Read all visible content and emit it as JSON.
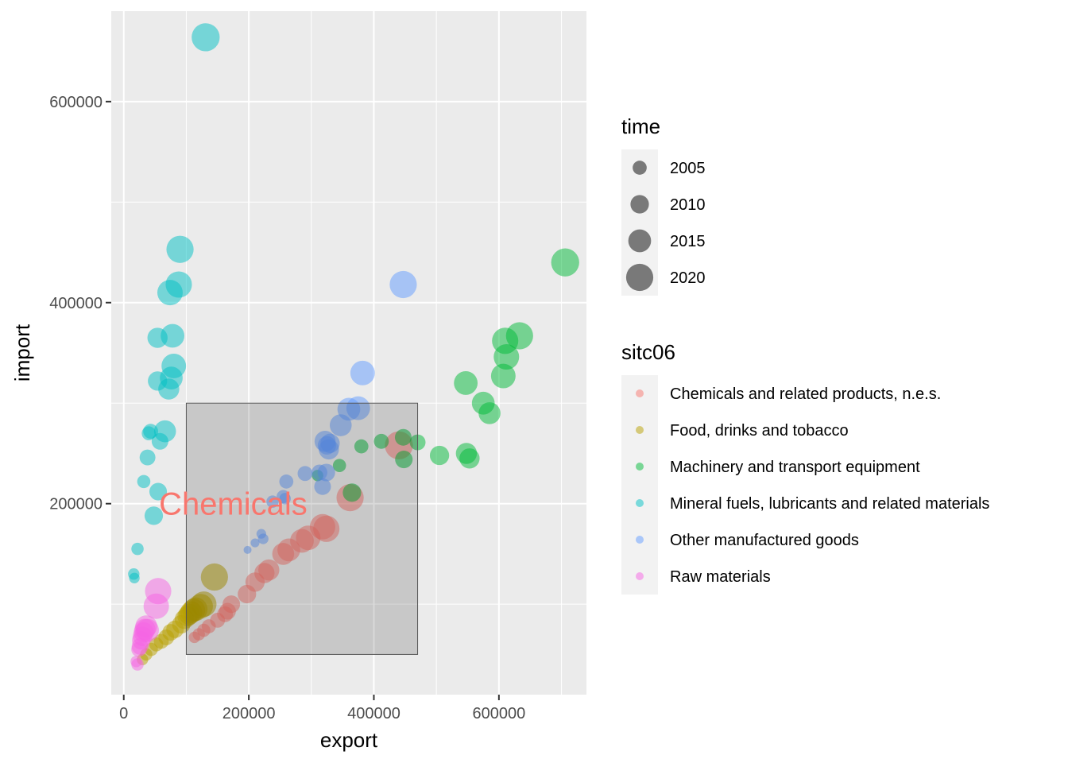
{
  "chart_data": {
    "type": "scatter",
    "xlabel": "export",
    "ylabel": "import",
    "xlim": [
      -20000,
      740000
    ],
    "ylim": [
      10000,
      690000
    ],
    "x_ticks": [
      0,
      200000,
      400000,
      600000
    ],
    "y_ticks": [
      200000,
      400000,
      600000
    ],
    "grid": true,
    "legend_position": "right",
    "annotation": {
      "text": "Chemicals",
      "x": 175000,
      "y": 200000,
      "color": "#F8766D",
      "rect": {
        "xmin": 100000,
        "xmax": 470000,
        "ymin": 50000,
        "ymax": 300000
      }
    },
    "size_legend": {
      "title": "time",
      "entries": [
        {
          "label": "2005",
          "value": 2005
        },
        {
          "label": "2010",
          "value": 2010
        },
        {
          "label": "2015",
          "value": 2015
        },
        {
          "label": "2020",
          "value": 2020
        }
      ]
    },
    "color_legend": {
      "title": "sitc06",
      "entries": [
        {
          "label": "Chemicals and related products, n.e.s.",
          "color": "#F8766D"
        },
        {
          "label": "Food, drinks and tobacco",
          "color": "#B79F00"
        },
        {
          "label": "Machinery and transport equipment",
          "color": "#00BA38"
        },
        {
          "label": "Mineral fuels, lubricants and related materials",
          "color": "#00BFC4"
        },
        {
          "label": "Other manufactured goods",
          "color": "#619CFF"
        },
        {
          "label": "Raw materials",
          "color": "#F564E3"
        }
      ]
    },
    "series": [
      {
        "color": "#F8766D",
        "points": [
          [
            113000,
            67000,
            2002
          ],
          [
            120000,
            70000,
            2003
          ],
          [
            128000,
            74000,
            2004
          ],
          [
            136000,
            78000,
            2005
          ],
          [
            150000,
            84000,
            2006
          ],
          [
            162000,
            90000,
            2007
          ],
          [
            166000,
            93000,
            2008
          ],
          [
            172000,
            100000,
            2009
          ],
          [
            197000,
            110000,
            2010
          ],
          [
            210000,
            122000,
            2011
          ],
          [
            225000,
            131000,
            2012
          ],
          [
            232000,
            134000,
            2013
          ],
          [
            255000,
            150000,
            2014
          ],
          [
            264000,
            154000,
            2015
          ],
          [
            285000,
            163000,
            2016
          ],
          [
            295000,
            166000,
            2017
          ],
          [
            318000,
            177000,
            2018
          ],
          [
            324000,
            175000,
            2019
          ],
          [
            362000,
            206000,
            2020
          ],
          [
            440000,
            258000,
            2021
          ]
        ]
      },
      {
        "color": "#B79F00",
        "points": [
          [
            30000,
            45000,
            2002
          ],
          [
            36000,
            50000,
            2003
          ],
          [
            44000,
            55000,
            2004
          ],
          [
            52000,
            60000,
            2005
          ],
          [
            60000,
            63000,
            2006
          ],
          [
            68000,
            67000,
            2007
          ],
          [
            75000,
            72000,
            2008
          ],
          [
            82000,
            75000,
            2009
          ],
          [
            92000,
            80000,
            2010
          ],
          [
            97000,
            85000,
            2011
          ],
          [
            102000,
            88000,
            2012
          ],
          [
            105000,
            90000,
            2013
          ],
          [
            108000,
            92000,
            2014
          ],
          [
            112000,
            94000,
            2015
          ],
          [
            115000,
            95000,
            2016
          ],
          [
            123000,
            98000,
            2017
          ],
          [
            128000,
            100000,
            2018
          ],
          [
            145000,
            127000,
            2020
          ]
        ]
      },
      {
        "color": "#00BA38",
        "points": [
          [
            310000,
            228000,
            2002
          ],
          [
            345000,
            238000,
            2004
          ],
          [
            380000,
            257000,
            2005
          ],
          [
            412000,
            262000,
            2006
          ],
          [
            470000,
            261000,
            2007
          ],
          [
            447000,
            266000,
            2008
          ],
          [
            448000,
            244000,
            2009
          ],
          [
            365000,
            211000,
            2010
          ],
          [
            505000,
            248000,
            2011
          ],
          [
            553000,
            245000,
            2012
          ],
          [
            548000,
            250000,
            2013
          ],
          [
            585000,
            290000,
            2014
          ],
          [
            575000,
            300000,
            2015
          ],
          [
            547000,
            320000,
            2016
          ],
          [
            607000,
            327000,
            2017
          ],
          [
            612000,
            346000,
            2018
          ],
          [
            610000,
            362000,
            2019
          ],
          [
            633000,
            367000,
            2020
          ],
          [
            706000,
            440000,
            2021
          ]
        ]
      },
      {
        "color": "#00BFC4",
        "points": [
          [
            16000,
            130000,
            2002
          ],
          [
            17000,
            126000,
            2001
          ],
          [
            22000,
            155000,
            2003
          ],
          [
            32000,
            222000,
            2004
          ],
          [
            40000,
            270000,
            2005
          ],
          [
            43000,
            272000,
            2006
          ],
          [
            38000,
            246000,
            2007
          ],
          [
            58000,
            262000,
            2008
          ],
          [
            55000,
            212000,
            2009
          ],
          [
            48000,
            188000,
            2010
          ],
          [
            54000,
            322000,
            2011
          ],
          [
            54000,
            365000,
            2012
          ],
          [
            72000,
            314000,
            2013
          ],
          [
            66000,
            272000,
            2014
          ],
          [
            76000,
            325000,
            2015
          ],
          [
            78000,
            367000,
            2016
          ],
          [
            80000,
            337000,
            2017
          ],
          [
            74000,
            410000,
            2018
          ],
          [
            88000,
            418000,
            2019
          ],
          [
            90000,
            453000,
            2020
          ],
          [
            131000,
            664000,
            2021
          ]
        ]
      },
      {
        "color": "#619CFF",
        "points": [
          [
            198000,
            154000,
            1998
          ],
          [
            210000,
            161000,
            1999
          ],
          [
            220000,
            170000,
            2000
          ],
          [
            223000,
            165000,
            2001
          ],
          [
            258000,
            205000,
            2002
          ],
          [
            238000,
            202000,
            2003
          ],
          [
            255000,
            207000,
            2004
          ],
          [
            260000,
            222000,
            2005
          ],
          [
            290000,
            230000,
            2006
          ],
          [
            313000,
            231000,
            2007
          ],
          [
            318000,
            217000,
            2008
          ],
          [
            324000,
            231000,
            2009
          ],
          [
            325000,
            258000,
            2010
          ],
          [
            330000,
            260000,
            2011
          ],
          [
            328000,
            254000,
            2012
          ],
          [
            322000,
            262000,
            2013
          ],
          [
            347000,
            278000,
            2014
          ],
          [
            360000,
            294000,
            2015
          ],
          [
            375000,
            295000,
            2016
          ],
          [
            382000,
            330000,
            2017
          ],
          [
            447000,
            418000,
            2020
          ]
        ]
      },
      {
        "color": "#F564E3",
        "points": [
          [
            20000,
            43000,
            2002
          ],
          [
            22000,
            40000,
            2003
          ],
          [
            24000,
            55000,
            2006
          ],
          [
            26000,
            58000,
            2008
          ],
          [
            28000,
            64000,
            2010
          ],
          [
            30000,
            68000,
            2011
          ],
          [
            32000,
            72000,
            2012
          ],
          [
            34000,
            75000,
            2013
          ],
          [
            36000,
            78000,
            2014
          ],
          [
            38000,
            74000,
            2015
          ],
          [
            52000,
            98000,
            2018
          ],
          [
            55000,
            113000,
            2019
          ]
        ]
      }
    ]
  }
}
